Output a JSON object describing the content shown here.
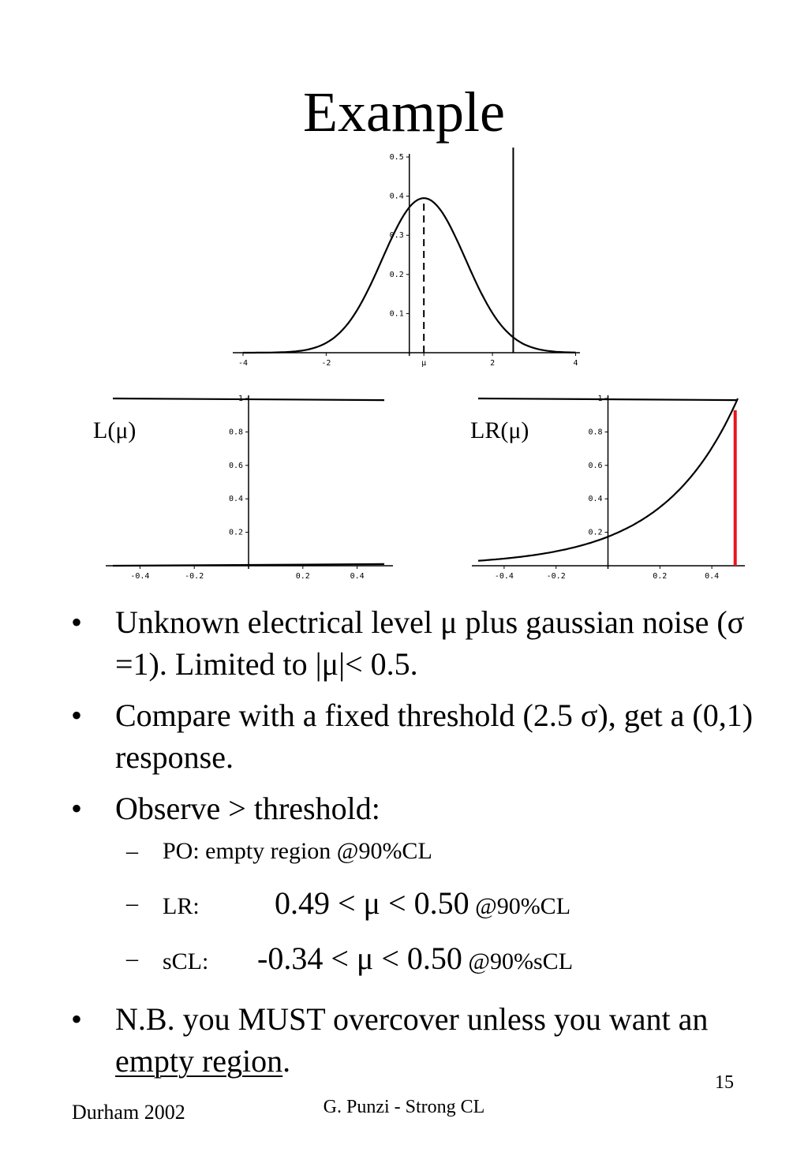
{
  "slide": {
    "title": "Example",
    "page_number": "15",
    "footer_left": "Durham 2002",
    "footer_center": "G. Punzi - Strong CL"
  },
  "bullets": [
    {
      "text": "Unknown electrical level μ plus gaussian noise (σ =1). Limited to |μ|< 0.5."
    },
    {
      "text": "Compare with a fixed threshold (2.5 σ), get a (0,1) response."
    },
    {
      "text": "Observe > threshold:"
    },
    {
      "text_prefix": "N.B. you MUST overcover unless you want an ",
      "text_link": "empty region",
      "text_suffix": "."
    }
  ],
  "sub_bullets": {
    "po": "PO: empty region @90%CL",
    "lr_label": "LR:",
    "lr_interval": "0.49 < μ < 0.50",
    "lr_cl": "@90%CL",
    "scl_label": "sCL:",
    "scl_interval": "-0.34 < μ < 0.50",
    "scl_cl": "@90%sCL"
  },
  "chart_data": [
    {
      "type": "line",
      "title": "",
      "xlabel": "",
      "ylabel": "",
      "xlim": [
        -4,
        4.2
      ],
      "ylim": [
        0,
        0.5
      ],
      "x_ticks": [
        "-4",
        "-2",
        "μ",
        "2",
        "4"
      ],
      "y_ticks": [
        "0.1",
        "0.2",
        "0.3",
        "0.4",
        "0.5"
      ],
      "series": [
        {
          "style": "solid",
          "x": [
            -4,
            -3.5,
            -3,
            -2.5,
            -2,
            -1.5,
            -1,
            -0.5,
            0,
            0.3,
            0.5,
            1,
            1.5,
            2,
            2.5,
            3,
            3.5,
            4
          ],
          "y": [
            0.0004,
            0.0017,
            0.0058,
            0.0165,
            0.0402,
            0.0832,
            0.1476,
            0.2244,
            0.292,
            0.3945,
            0.391,
            0.3485,
            0.2661,
            0.1738,
            0.0972,
            0.0465,
            0.019,
            0.0067
          ]
        }
      ],
      "markers": [
        {
          "style": "dashed",
          "x": 0.35,
          "label": "μ"
        },
        {
          "style": "solid",
          "x": 2.5,
          "label": "threshold"
        }
      ]
    },
    {
      "type": "line",
      "label": "L(μ)",
      "xlim": [
        -0.5,
        0.5
      ],
      "ylim": [
        0,
        1
      ],
      "x_ticks": [
        "-0.4",
        "-0.2",
        "0.2",
        "0.4"
      ],
      "y_ticks": [
        "0.2",
        "0.4",
        "0.6",
        "0.8",
        "1"
      ],
      "series": [
        {
          "x": [
            -0.5,
            0.5
          ],
          "y": [
            1.0,
            0.99
          ]
        },
        {
          "x": [
            -0.5,
            0.5
          ],
          "y": [
            0.0,
            0.01
          ]
        }
      ]
    },
    {
      "type": "line",
      "label": "LR(μ)",
      "xlim": [
        -0.5,
        0.5
      ],
      "ylim": [
        0,
        1
      ],
      "x_ticks": [
        "-0.4",
        "-0.2",
        "0.2",
        "0.4"
      ],
      "y_ticks": [
        "0.2",
        "0.4",
        "0.6",
        "0.8",
        "1"
      ],
      "series": [
        {
          "x": [
            -0.5,
            0.5
          ],
          "y": [
            1.0,
            0.99
          ]
        },
        {
          "x": [
            -0.5,
            -0.4,
            -0.3,
            -0.2,
            -0.1,
            0,
            0.1,
            0.2,
            0.3,
            0.4,
            0.5
          ],
          "y": [
            0.03,
            0.06,
            0.09,
            0.13,
            0.18,
            0.25,
            0.33,
            0.45,
            0.6,
            0.78,
            1.0
          ]
        }
      ],
      "markers": [
        {
          "style": "solid",
          "color": "#e8161a",
          "x": 0.49,
          "y_from": 0,
          "y_to": 0.93
        }
      ]
    }
  ]
}
